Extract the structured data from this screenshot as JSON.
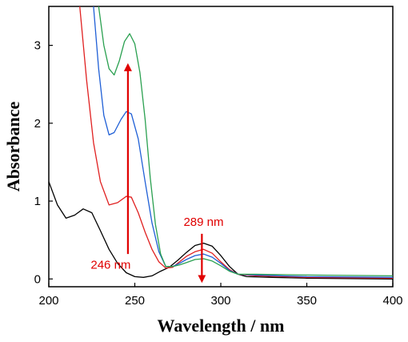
{
  "chart_data": {
    "type": "line",
    "xlabel": "Wavelength / nm",
    "ylabel": "Absorbance",
    "xlim": [
      200,
      400
    ],
    "ylim": [
      -0.1,
      3.5
    ],
    "xticks": [
      200,
      250,
      300,
      350,
      400
    ],
    "yticks": [
      0,
      1,
      2,
      3
    ],
    "grid": false,
    "series": [
      {
        "color": "#000000",
        "points": [
          [
            200,
            1.25
          ],
          [
            205,
            0.95
          ],
          [
            210,
            0.78
          ],
          [
            215,
            0.82
          ],
          [
            220,
            0.9
          ],
          [
            225,
            0.85
          ],
          [
            230,
            0.62
          ],
          [
            235,
            0.38
          ],
          [
            240,
            0.2
          ],
          [
            245,
            0.08
          ],
          [
            250,
            0.03
          ],
          [
            255,
            0.02
          ],
          [
            260,
            0.04
          ],
          [
            265,
            0.1
          ],
          [
            270,
            0.15
          ],
          [
            275,
            0.24
          ],
          [
            280,
            0.34
          ],
          [
            285,
            0.43
          ],
          [
            290,
            0.46
          ],
          [
            295,
            0.42
          ],
          [
            300,
            0.3
          ],
          [
            305,
            0.16
          ],
          [
            310,
            0.06
          ],
          [
            315,
            0.03
          ],
          [
            330,
            0.02
          ],
          [
            350,
            0.01
          ],
          [
            400,
            0.0
          ]
        ]
      },
      {
        "color": "#e02020",
        "points": [
          [
            218,
            3.5
          ],
          [
            222,
            2.55
          ],
          [
            226,
            1.75
          ],
          [
            230,
            1.25
          ],
          [
            235,
            0.95
          ],
          [
            240,
            0.98
          ],
          [
            245,
            1.06
          ],
          [
            248,
            1.05
          ],
          [
            252,
            0.85
          ],
          [
            256,
            0.6
          ],
          [
            260,
            0.38
          ],
          [
            264,
            0.22
          ],
          [
            268,
            0.14
          ],
          [
            272,
            0.15
          ],
          [
            276,
            0.22
          ],
          [
            280,
            0.29
          ],
          [
            285,
            0.35
          ],
          [
            290,
            0.38
          ],
          [
            295,
            0.33
          ],
          [
            300,
            0.22
          ],
          [
            305,
            0.12
          ],
          [
            310,
            0.06
          ],
          [
            320,
            0.04
          ],
          [
            350,
            0.02
          ],
          [
            400,
            0.01
          ]
        ]
      },
      {
        "color": "#1f5fd6",
        "points": [
          [
            226,
            3.5
          ],
          [
            229,
            2.7
          ],
          [
            232,
            2.1
          ],
          [
            235,
            1.85
          ],
          [
            238,
            1.88
          ],
          [
            242,
            2.05
          ],
          [
            245,
            2.15
          ],
          [
            248,
            2.12
          ],
          [
            252,
            1.8
          ],
          [
            256,
            1.25
          ],
          [
            260,
            0.72
          ],
          [
            264,
            0.35
          ],
          [
            268,
            0.16
          ],
          [
            272,
            0.16
          ],
          [
            276,
            0.2
          ],
          [
            280,
            0.25
          ],
          [
            285,
            0.3
          ],
          [
            290,
            0.32
          ],
          [
            295,
            0.28
          ],
          [
            300,
            0.2
          ],
          [
            305,
            0.11
          ],
          [
            310,
            0.06
          ],
          [
            320,
            0.05
          ],
          [
            350,
            0.03
          ],
          [
            400,
            0.02
          ]
        ]
      },
      {
        "color": "#2aa050",
        "points": [
          [
            229,
            3.5
          ],
          [
            232,
            3.0
          ],
          [
            235,
            2.7
          ],
          [
            238,
            2.62
          ],
          [
            241,
            2.8
          ],
          [
            244,
            3.05
          ],
          [
            247,
            3.15
          ],
          [
            250,
            3.02
          ],
          [
            253,
            2.65
          ],
          [
            256,
            2.05
          ],
          [
            259,
            1.3
          ],
          [
            262,
            0.7
          ],
          [
            265,
            0.32
          ],
          [
            268,
            0.16
          ],
          [
            272,
            0.16
          ],
          [
            276,
            0.18
          ],
          [
            280,
            0.21
          ],
          [
            285,
            0.25
          ],
          [
            290,
            0.26
          ],
          [
            295,
            0.23
          ],
          [
            300,
            0.17
          ],
          [
            305,
            0.1
          ],
          [
            310,
            0.06
          ],
          [
            320,
            0.06
          ],
          [
            350,
            0.05
          ],
          [
            400,
            0.04
          ]
        ]
      }
    ],
    "annotations": [
      {
        "text": "246 nm",
        "x": 236,
        "y": 0.13,
        "color": "#e00000"
      },
      {
        "text": "289 nm",
        "x": 290,
        "y": 0.68,
        "color": "#e00000"
      }
    ],
    "arrows": [
      {
        "direction": "up",
        "x": 246,
        "y_from": 0.32,
        "y_to": 2.72,
        "color": "#e00000"
      },
      {
        "direction": "down",
        "x": 289,
        "y_from": 0.58,
        "y_to": 0.0,
        "color": "#e00000"
      }
    ]
  }
}
